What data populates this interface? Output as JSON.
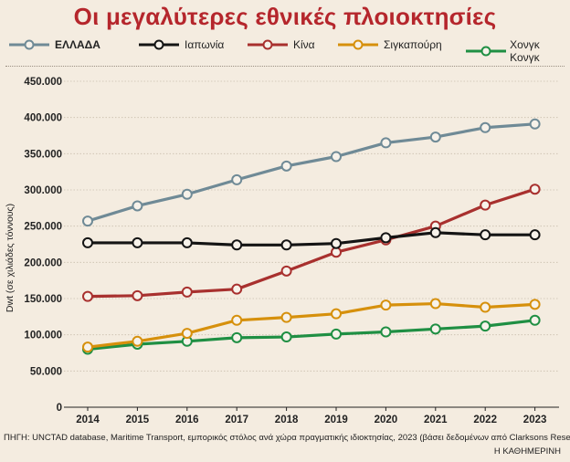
{
  "title": "Οι μεγαλύτερες εθνικές πλοιοκτησίες",
  "chart_data": {
    "type": "line",
    "title": "Οι μεγαλύτερες εθνικές πλοιοκτησίες",
    "ylabel": "Dwt (σε χιλιάδες τόννους)",
    "xlabel": "",
    "ylim": [
      0,
      450000
    ],
    "yticks": [
      0,
      50000,
      100000,
      150000,
      200000,
      250000,
      300000,
      350000,
      400000,
      450000
    ],
    "ytick_labels": [
      "0",
      "50.000",
      "100.000",
      "150.000",
      "200.000",
      "250.000",
      "300.000",
      "350.000",
      "400.000",
      "450.000"
    ],
    "x": [
      "2014",
      "2015",
      "2016",
      "2017",
      "2018",
      "2019",
      "2020",
      "2021",
      "2022",
      "2023"
    ],
    "grid": true,
    "legend_position": "top",
    "series": [
      {
        "name": "ΕΛΛΑΔΑ",
        "color": "#6f8a96",
        "bold": true,
        "values": [
          257000,
          278000,
          294000,
          314000,
          333000,
          346000,
          365000,
          373000,
          386000,
          391000
        ]
      },
      {
        "name": "Ιαπωνία",
        "color": "#141414",
        "values": [
          227000,
          227000,
          227000,
          224000,
          224000,
          226000,
          234000,
          241000,
          238000,
          238000
        ]
      },
      {
        "name": "Κίνα",
        "color": "#a8302e",
        "values": [
          153000,
          154000,
          159000,
          163000,
          188000,
          214000,
          231000,
          250000,
          279000,
          301000
        ]
      },
      {
        "name": "Σιγκαπούρη",
        "color": "#d6900c",
        "values": [
          83000,
          91000,
          102000,
          120000,
          124000,
          129000,
          141000,
          143000,
          138000,
          142000
        ]
      },
      {
        "name": "Χονγκ Κονγκ",
        "color": "#1f8f43",
        "values": [
          80000,
          87000,
          91000,
          96000,
          97000,
          101000,
          104000,
          108000,
          112000,
          120000
        ]
      }
    ]
  },
  "source": "ΠΗΓΗ: UNCTAD database, Maritime Transport, εμπορικός στόλος ανά χώρα πραγματικής ιδιοκτησίας, 2023 (βάσει δεδομένων από Clarksons Research)",
  "publisher": "Η ΚΑΘΗΜΕΡΙΝΗ"
}
